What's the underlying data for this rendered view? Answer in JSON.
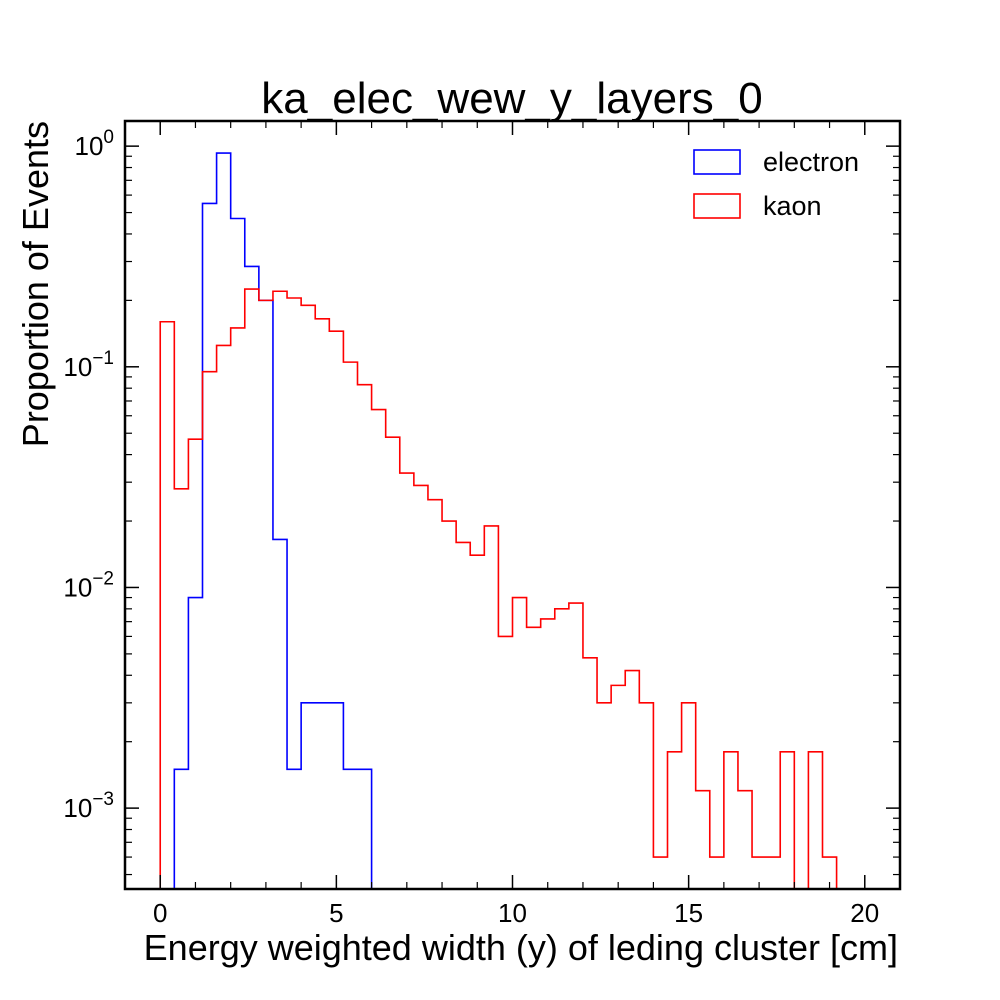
{
  "chart_data": {
    "type": "histogram",
    "title": "ka_elec_wew_y_layers_0",
    "xlabel": "Energy weighted width (y) of leding cluster [cm]",
    "ylabel": "Proportion of Events",
    "xlim": [
      -1,
      21
    ],
    "ylim": [
      0.00043,
      1.3
    ],
    "yscale": "log",
    "x_ticks": [
      0,
      5,
      10,
      15,
      20
    ],
    "x_tick_labels": [
      "0",
      "5",
      "10",
      "15",
      "20"
    ],
    "y_ticks": [
      0.001,
      0.01,
      0.1,
      1
    ],
    "y_tick_labels": [
      {
        "base": "10",
        "exp": "−3"
      },
      {
        "base": "10",
        "exp": "−2"
      },
      {
        "base": "10",
        "exp": "−1"
      },
      {
        "base": "10",
        "exp": "0"
      }
    ],
    "legend_position": "top-right",
    "grid": false,
    "bin_start": 0,
    "bin_width": 0.4,
    "series": [
      {
        "name": "electron",
        "color": "#0000ff",
        "values": [
          0,
          0.0015,
          0.009,
          0.55,
          0.93,
          0.47,
          0.285,
          0.2,
          0.0165,
          0.0015,
          0.003,
          0.003,
          0.003,
          0.0015,
          0.0015,
          0
        ]
      },
      {
        "name": "kaon",
        "color": "#ff0000",
        "values": [
          0.16,
          0.028,
          0.047,
          0.095,
          0.125,
          0.15,
          0.225,
          0.2,
          0.22,
          0.205,
          0.19,
          0.165,
          0.145,
          0.105,
          0.083,
          0.064,
          0.048,
          0.033,
          0.029,
          0.025,
          0.02,
          0.016,
          0.014,
          0.019,
          0.006,
          0.009,
          0.0066,
          0.0072,
          0.008,
          0.0085,
          0.0048,
          0.003,
          0.0036,
          0.0042,
          0.003,
          0.0006,
          0.0018,
          0.003,
          0.0012,
          0.0006,
          0.0018,
          0.0012,
          0.0006,
          0.0006,
          0.0018,
          0,
          0.0018,
          0.0006,
          0
        ]
      }
    ]
  }
}
